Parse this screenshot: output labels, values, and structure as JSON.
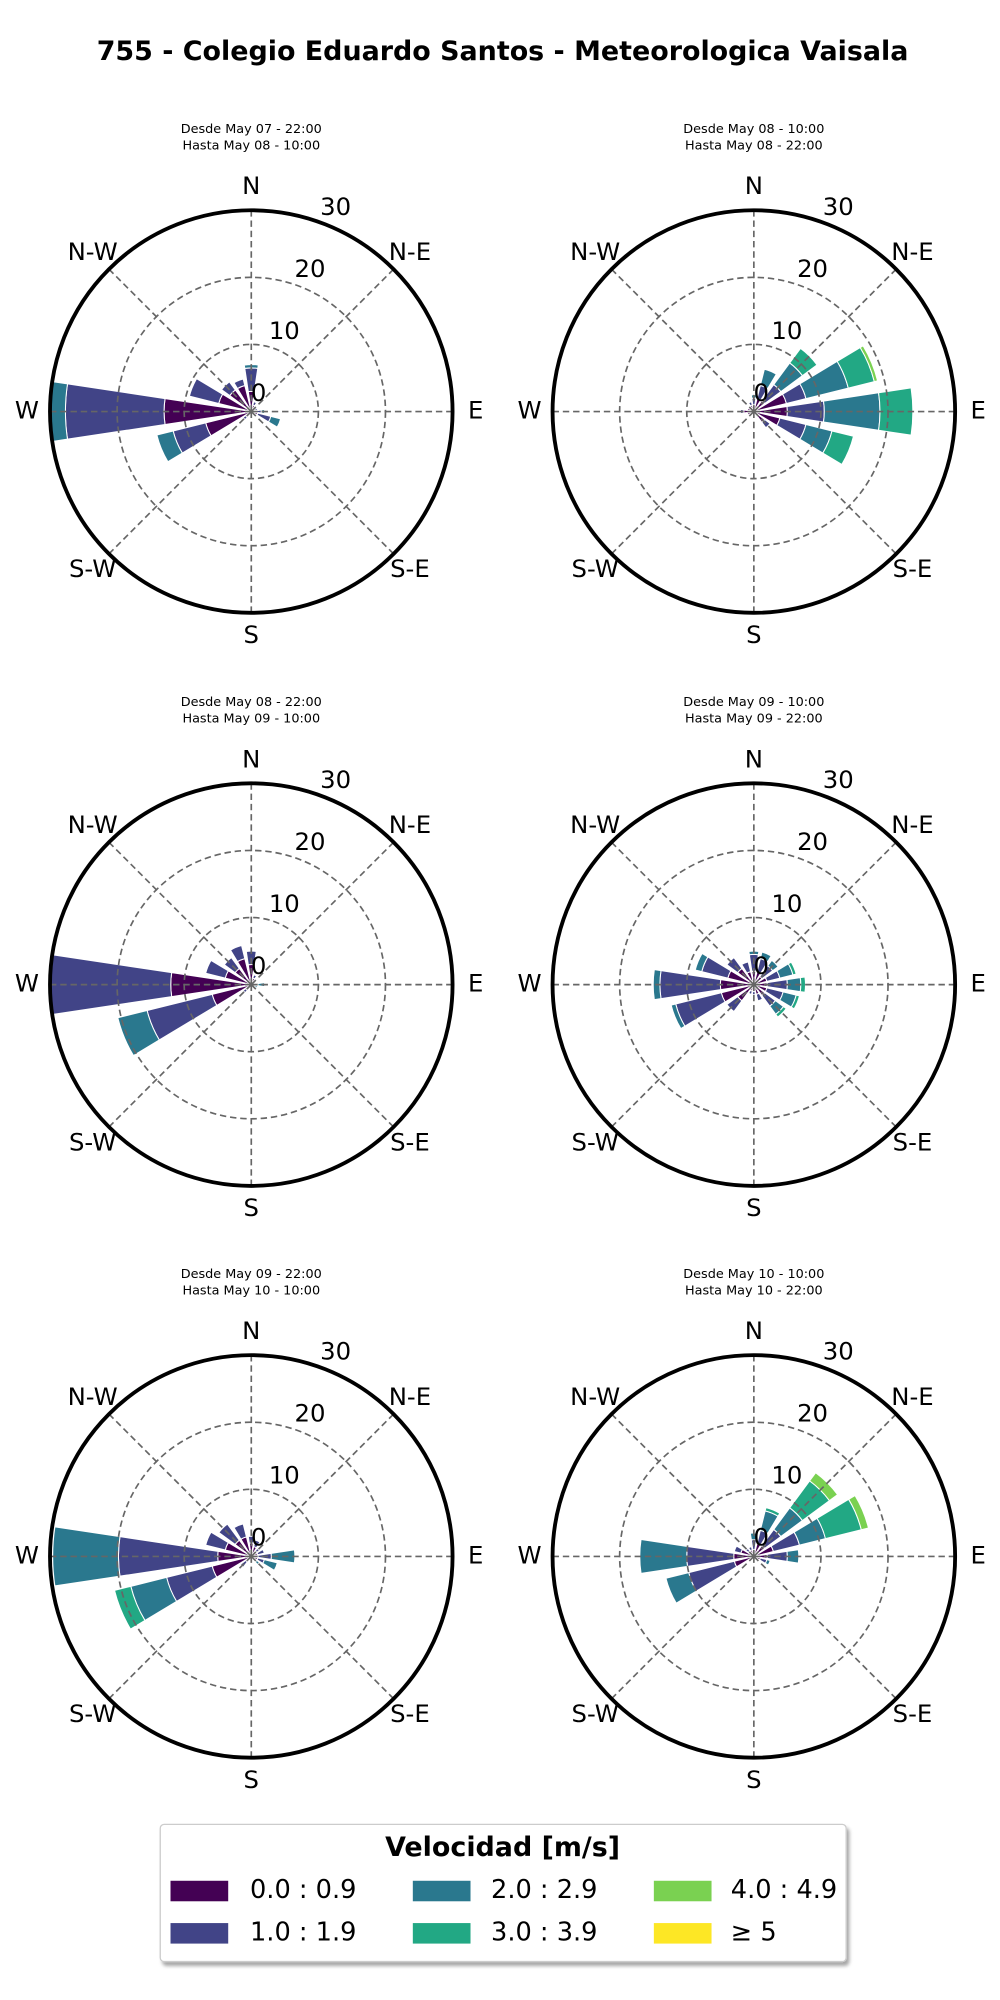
{
  "chart_data": {
    "type": "windrose",
    "title": "755 - Colegio Eduardo Santos - Meteorologica Vaisala",
    "rlim": [
      0,
      30
    ],
    "rticks": [
      0,
      10,
      20,
      30
    ],
    "direction_labels": [
      "N",
      "N-E",
      "E",
      "S-E",
      "S",
      "S-W",
      "W",
      "N-W"
    ],
    "legend_title": "Velocidad [m/s]",
    "series": [
      {
        "name": "0.0 : 0.9",
        "color": "#440154"
      },
      {
        "name": "1.0 : 1.9",
        "color": "#414487"
      },
      {
        "name": "2.0 : 2.9",
        "color": "#2a788e"
      },
      {
        "name": "3.0 : 3.9",
        "color": "#22a884"
      },
      {
        "name": "4.0 : 4.9",
        "color": "#7ad151"
      },
      {
        "name": "≥  5",
        "color": "#fde725"
      }
    ],
    "panels": [
      {
        "subtitle": [
          "Desde May 07 - 22:00",
          "Hasta May 08 - 10:00"
        ],
        "values": [
          [
            3,
            1,
            0.5,
            0.5,
            0.5,
            1,
            0.5,
            0.5,
            0.5,
            0.5,
            1,
            7,
            13,
            5,
            4,
            4
          ],
          [
            3.5,
            0.5,
            0,
            0.5,
            1,
            2,
            0.5,
            0,
            0,
            0,
            0.5,
            5,
            14.7,
            4.5,
            1.5,
            1
          ],
          [
            0.5,
            0,
            0,
            0,
            0.5,
            1.5,
            0,
            0,
            0,
            0,
            0,
            2.5,
            2.3,
            0,
            0,
            0
          ],
          [
            0,
            0,
            0,
            0,
            0,
            0,
            0,
            0,
            0,
            0,
            0,
            0,
            0,
            0,
            0,
            0
          ],
          [
            0,
            0,
            0,
            0,
            0,
            0,
            0,
            0,
            0,
            0,
            0,
            0,
            0,
            0,
            0,
            0
          ],
          [
            0,
            0,
            0,
            0,
            0,
            0,
            0,
            0,
            0,
            0,
            0,
            0,
            0,
            0,
            0,
            0
          ]
        ]
      },
      {
        "subtitle": [
          "Desde May 08 - 10:00",
          "Hasta May 08 - 22:00"
        ],
        "values": [
          [
            1,
            2,
            2,
            5,
            5,
            4,
            2,
            0.5,
            0.5,
            0.5,
            0.5,
            1,
            1.5,
            1,
            1,
            1
          ],
          [
            1,
            2,
            3,
            3,
            5.5,
            4,
            1,
            0,
            0,
            0,
            0,
            0,
            0.5,
            0,
            0,
            0.5
          ],
          [
            0.5,
            2.5,
            4,
            6.5,
            8.3,
            4,
            0,
            0,
            0,
            0,
            0,
            0,
            0,
            0,
            0,
            0
          ],
          [
            0,
            0,
            2.7,
            4,
            4.9,
            3.3,
            0,
            0,
            0,
            0,
            0,
            0,
            0,
            0,
            0,
            0
          ],
          [
            0,
            0,
            0,
            0.5,
            0,
            0,
            0,
            0,
            0,
            0,
            0,
            0,
            0,
            0,
            0,
            0
          ],
          [
            0,
            0,
            0,
            0,
            0,
            0,
            0,
            0,
            0,
            0,
            0,
            0,
            0,
            0,
            0,
            0
          ]
        ]
      },
      {
        "subtitle": [
          "Desde May 08 - 22:00",
          "Hasta May 09 - 10:00"
        ],
        "values": [
          [
            3,
            1,
            0.5,
            0.5,
            0.5,
            0.5,
            0.5,
            0.5,
            0.5,
            0.5,
            1,
            6,
            12,
            4,
            3,
            4
          ],
          [
            2,
            0.5,
            0,
            0,
            0.5,
            0,
            0,
            0,
            0,
            0,
            0.5,
            10,
            18,
            3,
            2,
            2
          ],
          [
            0,
            0,
            0,
            0,
            1,
            0.5,
            0,
            0,
            0,
            0,
            0,
            4.5,
            0,
            0,
            0,
            0
          ],
          [
            0,
            0,
            0,
            0,
            0,
            0,
            0,
            0,
            0,
            0,
            0,
            0,
            0,
            0,
            0,
            0
          ],
          [
            0,
            0,
            0,
            0,
            0,
            0,
            0,
            0,
            0,
            0,
            0,
            0,
            0,
            0,
            0,
            0
          ],
          [
            0,
            0,
            0,
            0,
            0,
            0,
            0,
            0,
            0,
            0,
            0,
            0,
            0,
            0,
            0,
            0
          ]
        ]
      },
      {
        "subtitle": [
          "Desde May 09 - 10:00",
          "Hasta May 09 - 22:00"
        ],
        "values": [
          [
            2,
            2,
            1.5,
            2,
            2,
            2,
            2,
            1.5,
            1,
            1,
            3,
            5,
            5,
            4,
            3,
            2
          ],
          [
            2.5,
            2,
            2,
            2,
            3,
            2.5,
            2,
            1,
            0.5,
            0.5,
            2,
            7,
            9,
            4,
            2,
            1.5
          ],
          [
            0.5,
            1,
            1,
            2,
            2,
            2,
            1.5,
            0,
            0,
            0,
            0,
            0.7,
            1,
            1,
            0,
            0
          ],
          [
            0,
            0,
            0,
            0.5,
            0.7,
            0.5,
            0.5,
            0,
            0,
            0,
            0,
            0,
            0,
            0,
            0,
            0
          ],
          [
            0,
            0,
            0,
            0,
            0,
            0,
            0,
            0,
            0,
            0,
            0,
            0,
            0,
            0,
            0,
            0
          ],
          [
            0,
            0,
            0,
            0,
            0,
            0,
            0,
            0,
            0,
            0,
            0,
            0,
            0,
            0,
            0,
            0
          ]
        ]
      },
      {
        "subtitle": [
          "Desde May 09 - 22:00",
          "Hasta May 10 - 10:00"
        ],
        "values": [
          [
            2,
            1.5,
            1,
            1,
            1,
            1,
            0.5,
            0.5,
            0.5,
            0.5,
            1,
            6,
            5,
            4,
            3,
            3
          ],
          [
            1,
            1,
            0.5,
            1,
            2,
            1,
            0.5,
            0,
            0,
            0,
            1,
            7,
            14.8,
            3,
            3,
            2
          ],
          [
            0,
            0,
            0,
            0,
            3.5,
            2,
            0.5,
            0,
            0,
            0,
            0,
            5.5,
            9.8,
            0,
            0,
            0
          ],
          [
            0,
            0,
            0,
            0,
            0,
            0,
            0,
            0,
            0,
            0,
            0,
            2.5,
            0,
            0,
            0,
            0
          ],
          [
            0,
            0,
            0,
            0,
            0,
            0,
            0,
            0,
            0,
            0,
            0,
            0,
            0,
            0,
            0,
            0
          ],
          [
            0,
            0,
            0,
            0,
            0,
            0,
            0,
            0,
            0,
            0,
            0,
            0,
            0,
            0,
            0,
            0
          ]
        ]
      },
      {
        "subtitle": [
          "Desde May 10 - 10:00",
          "Hasta May 10 - 22:00"
        ],
        "values": [
          [
            1,
            2,
            2,
            3,
            2,
            1,
            0.5,
            0.5,
            0.5,
            0.5,
            1,
            3,
            3,
            2,
            1,
            1
          ],
          [
            1.5,
            2,
            3,
            4,
            3,
            1,
            0.5,
            0,
            0,
            0,
            0,
            7,
            7,
            1,
            0.5,
            0.5
          ],
          [
            1,
            3,
            4,
            4,
            1.7,
            0.5,
            0,
            0,
            0,
            0,
            0,
            3.5,
            7,
            0,
            0,
            0
          ],
          [
            0,
            0.5,
            5,
            5.5,
            0,
            0,
            0,
            0,
            0,
            0,
            0,
            0,
            0,
            0,
            0,
            0
          ],
          [
            0,
            0,
            1.5,
            1.1,
            0,
            0,
            0,
            0,
            0,
            0,
            0,
            0,
            0,
            0,
            0,
            0
          ],
          [
            0,
            0,
            0,
            0,
            0,
            0,
            0,
            0,
            0,
            0,
            0,
            0,
            0,
            0,
            0,
            0
          ]
        ]
      }
    ]
  }
}
